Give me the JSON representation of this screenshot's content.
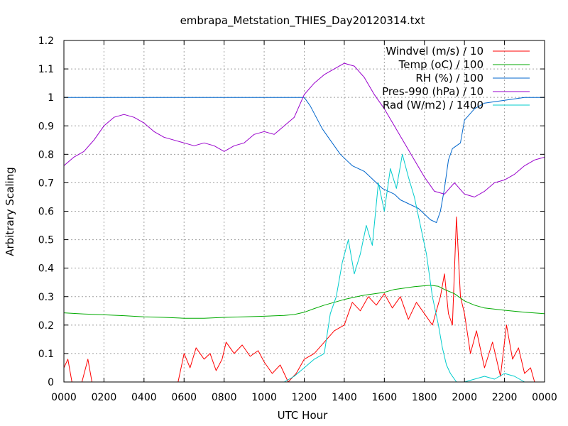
{
  "chart_data": {
    "type": "line",
    "title": "embrapa_Metstation_THIES_Day20120314.txt",
    "xlabel": "UTC Hour",
    "ylabel": "Arbitrary Scaling",
    "xlim": [
      0,
      24
    ],
    "ylim": [
      0,
      1.2
    ],
    "grid": true,
    "legend_position": "top-right",
    "xticks": [
      {
        "value": 0,
        "label": "0000"
      },
      {
        "value": 2,
        "label": "0200"
      },
      {
        "value": 4,
        "label": "0400"
      },
      {
        "value": 6,
        "label": "0600"
      },
      {
        "value": 8,
        "label": "0800"
      },
      {
        "value": 10,
        "label": "1000"
      },
      {
        "value": 12,
        "label": "1200"
      },
      {
        "value": 14,
        "label": "1400"
      },
      {
        "value": 16,
        "label": "1600"
      },
      {
        "value": 18,
        "label": "1800"
      },
      {
        "value": 20,
        "label": "2000"
      },
      {
        "value": 22,
        "label": "2200"
      },
      {
        "value": 24,
        "label": "0000"
      }
    ],
    "yticks": [
      {
        "value": 0,
        "label": "0"
      },
      {
        "value": 0.1,
        "label": "0.1"
      },
      {
        "value": 0.2,
        "label": "0.2"
      },
      {
        "value": 0.3,
        "label": "0.3"
      },
      {
        "value": 0.4,
        "label": "0.4"
      },
      {
        "value": 0.5,
        "label": "0.5"
      },
      {
        "value": 0.6,
        "label": "0.6"
      },
      {
        "value": 0.7,
        "label": "0.7"
      },
      {
        "value": 0.8,
        "label": "0.8"
      },
      {
        "value": 0.9,
        "label": "0.9"
      },
      {
        "value": 1,
        "label": "1"
      },
      {
        "value": 1.1,
        "label": "1.1"
      },
      {
        "value": 1.2,
        "label": "1.2"
      }
    ],
    "series": [
      {
        "name": "Windvel (m/s) / 10",
        "color": "#ff0000",
        "x": [
          0,
          0.2,
          0.4,
          0.9,
          1.2,
          1.4,
          5.7,
          6.0,
          6.3,
          6.6,
          7.0,
          7.3,
          7.6,
          7.9,
          8.1,
          8.5,
          8.9,
          9.3,
          9.7,
          10.0,
          10.4,
          10.8,
          11.2,
          11.6,
          12.0,
          12.5,
          13.0,
          13.5,
          14.0,
          14.4,
          14.8,
          15.2,
          15.6,
          16.0,
          16.4,
          16.8,
          17.2,
          17.6,
          18.0,
          18.4,
          18.8,
          19.0,
          19.2,
          19.4,
          19.6,
          19.8,
          20.0,
          20.3,
          20.6,
          21.0,
          21.4,
          21.8,
          22.1,
          22.4,
          22.7,
          23.0,
          23.3,
          23.5
        ],
        "y": [
          0.05,
          0.08,
          0.0,
          0.0,
          0.08,
          0.0,
          0.0,
          0.1,
          0.05,
          0.12,
          0.08,
          0.1,
          0.04,
          0.08,
          0.14,
          0.1,
          0.13,
          0.09,
          0.11,
          0.07,
          0.03,
          0.06,
          0.0,
          0.03,
          0.08,
          0.1,
          0.14,
          0.18,
          0.2,
          0.28,
          0.25,
          0.3,
          0.27,
          0.31,
          0.26,
          0.3,
          0.22,
          0.28,
          0.24,
          0.2,
          0.3,
          0.38,
          0.24,
          0.2,
          0.58,
          0.3,
          0.24,
          0.1,
          0.18,
          0.05,
          0.14,
          0.02,
          0.2,
          0.08,
          0.12,
          0.03,
          0.05,
          0.0
        ]
      },
      {
        "name": "Temp (oC) / 100",
        "color": "#00aa00",
        "x": [
          0,
          1,
          2,
          3,
          4,
          5,
          6,
          7,
          8,
          9,
          10,
          11,
          11.5,
          12,
          12.5,
          13,
          13.5,
          14,
          14.5,
          15,
          15.5,
          16,
          16.5,
          17,
          17.5,
          18,
          18.3,
          18.7,
          19,
          19.5,
          20,
          20.5,
          21,
          22,
          23,
          24
        ],
        "y": [
          0.243,
          0.239,
          0.236,
          0.233,
          0.229,
          0.227,
          0.224,
          0.224,
          0.227,
          0.229,
          0.231,
          0.234,
          0.237,
          0.245,
          0.258,
          0.27,
          0.28,
          0.29,
          0.298,
          0.305,
          0.31,
          0.315,
          0.325,
          0.33,
          0.335,
          0.338,
          0.34,
          0.336,
          0.325,
          0.31,
          0.285,
          0.27,
          0.26,
          0.252,
          0.245,
          0.24
        ]
      },
      {
        "name": "RH (%) / 100",
        "color": "#0066cc",
        "x": [
          0,
          6,
          12,
          12.3,
          12.6,
          12.9,
          13.2,
          13.5,
          13.8,
          14.1,
          14.4,
          14.7,
          15.0,
          15.3,
          15.6,
          15.9,
          16.2,
          16.5,
          16.8,
          17.1,
          17.4,
          17.7,
          18.0,
          18.3,
          18.6,
          18.8,
          19.0,
          19.2,
          19.4,
          19.6,
          19.8,
          20.0,
          20.5,
          21,
          22,
          23,
          24
        ],
        "y": [
          1.0,
          1.0,
          1.0,
          0.97,
          0.93,
          0.89,
          0.86,
          0.83,
          0.8,
          0.78,
          0.76,
          0.75,
          0.74,
          0.72,
          0.7,
          0.68,
          0.67,
          0.66,
          0.64,
          0.63,
          0.62,
          0.61,
          0.59,
          0.57,
          0.56,
          0.6,
          0.68,
          0.78,
          0.82,
          0.83,
          0.84,
          0.92,
          0.96,
          0.98,
          0.99,
          1.0,
          1.0
        ]
      },
      {
        "name": "Pres-990 (hPa) / 10",
        "color": "#9900cc",
        "x": [
          0,
          0.5,
          1.0,
          1.5,
          2.0,
          2.5,
          3.0,
          3.5,
          4.0,
          4.5,
          5.0,
          5.5,
          6.0,
          6.5,
          7.0,
          7.5,
          8.0,
          8.5,
          9.0,
          9.5,
          10.0,
          10.5,
          11.0,
          11.5,
          12.0,
          12.5,
          13.0,
          13.5,
          14.0,
          14.5,
          15.0,
          15.5,
          16.0,
          16.5,
          17.0,
          17.5,
          18.0,
          18.5,
          19.0,
          19.5,
          20.0,
          20.5,
          21.0,
          21.5,
          22.0,
          22.5,
          23.0,
          23.5,
          24
        ],
        "y": [
          0.76,
          0.79,
          0.81,
          0.85,
          0.9,
          0.93,
          0.94,
          0.93,
          0.91,
          0.88,
          0.86,
          0.85,
          0.84,
          0.83,
          0.84,
          0.83,
          0.81,
          0.83,
          0.84,
          0.87,
          0.88,
          0.87,
          0.9,
          0.93,
          1.01,
          1.05,
          1.08,
          1.1,
          1.12,
          1.11,
          1.07,
          1.01,
          0.96,
          0.9,
          0.84,
          0.78,
          0.72,
          0.67,
          0.66,
          0.7,
          0.66,
          0.65,
          0.67,
          0.7,
          0.71,
          0.73,
          0.76,
          0.78,
          0.79
        ]
      },
      {
        "name": "Rad (W/m2) / 1400",
        "color": "#00cccc",
        "x": [
          0,
          10.5,
          11.0,
          11.5,
          12.0,
          12.5,
          13.0,
          13.3,
          13.6,
          13.9,
          14.2,
          14.5,
          14.8,
          15.1,
          15.4,
          15.7,
          16.0,
          16.3,
          16.6,
          16.9,
          17.2,
          17.5,
          17.8,
          18.1,
          18.4,
          18.7,
          18.9,
          19.1,
          19.3,
          19.6,
          20.0,
          20.5,
          21.0,
          21.5,
          22.0,
          22.5,
          23.0,
          24
        ],
        "y": [
          0.0,
          0.0,
          0.0,
          0.02,
          0.05,
          0.08,
          0.1,
          0.24,
          0.3,
          0.42,
          0.5,
          0.38,
          0.45,
          0.55,
          0.48,
          0.7,
          0.6,
          0.75,
          0.68,
          0.8,
          0.72,
          0.65,
          0.55,
          0.45,
          0.3,
          0.2,
          0.12,
          0.06,
          0.03,
          0.0,
          0.0,
          0.01,
          0.02,
          0.01,
          0.03,
          0.02,
          0.0,
          0.0
        ]
      }
    ]
  }
}
